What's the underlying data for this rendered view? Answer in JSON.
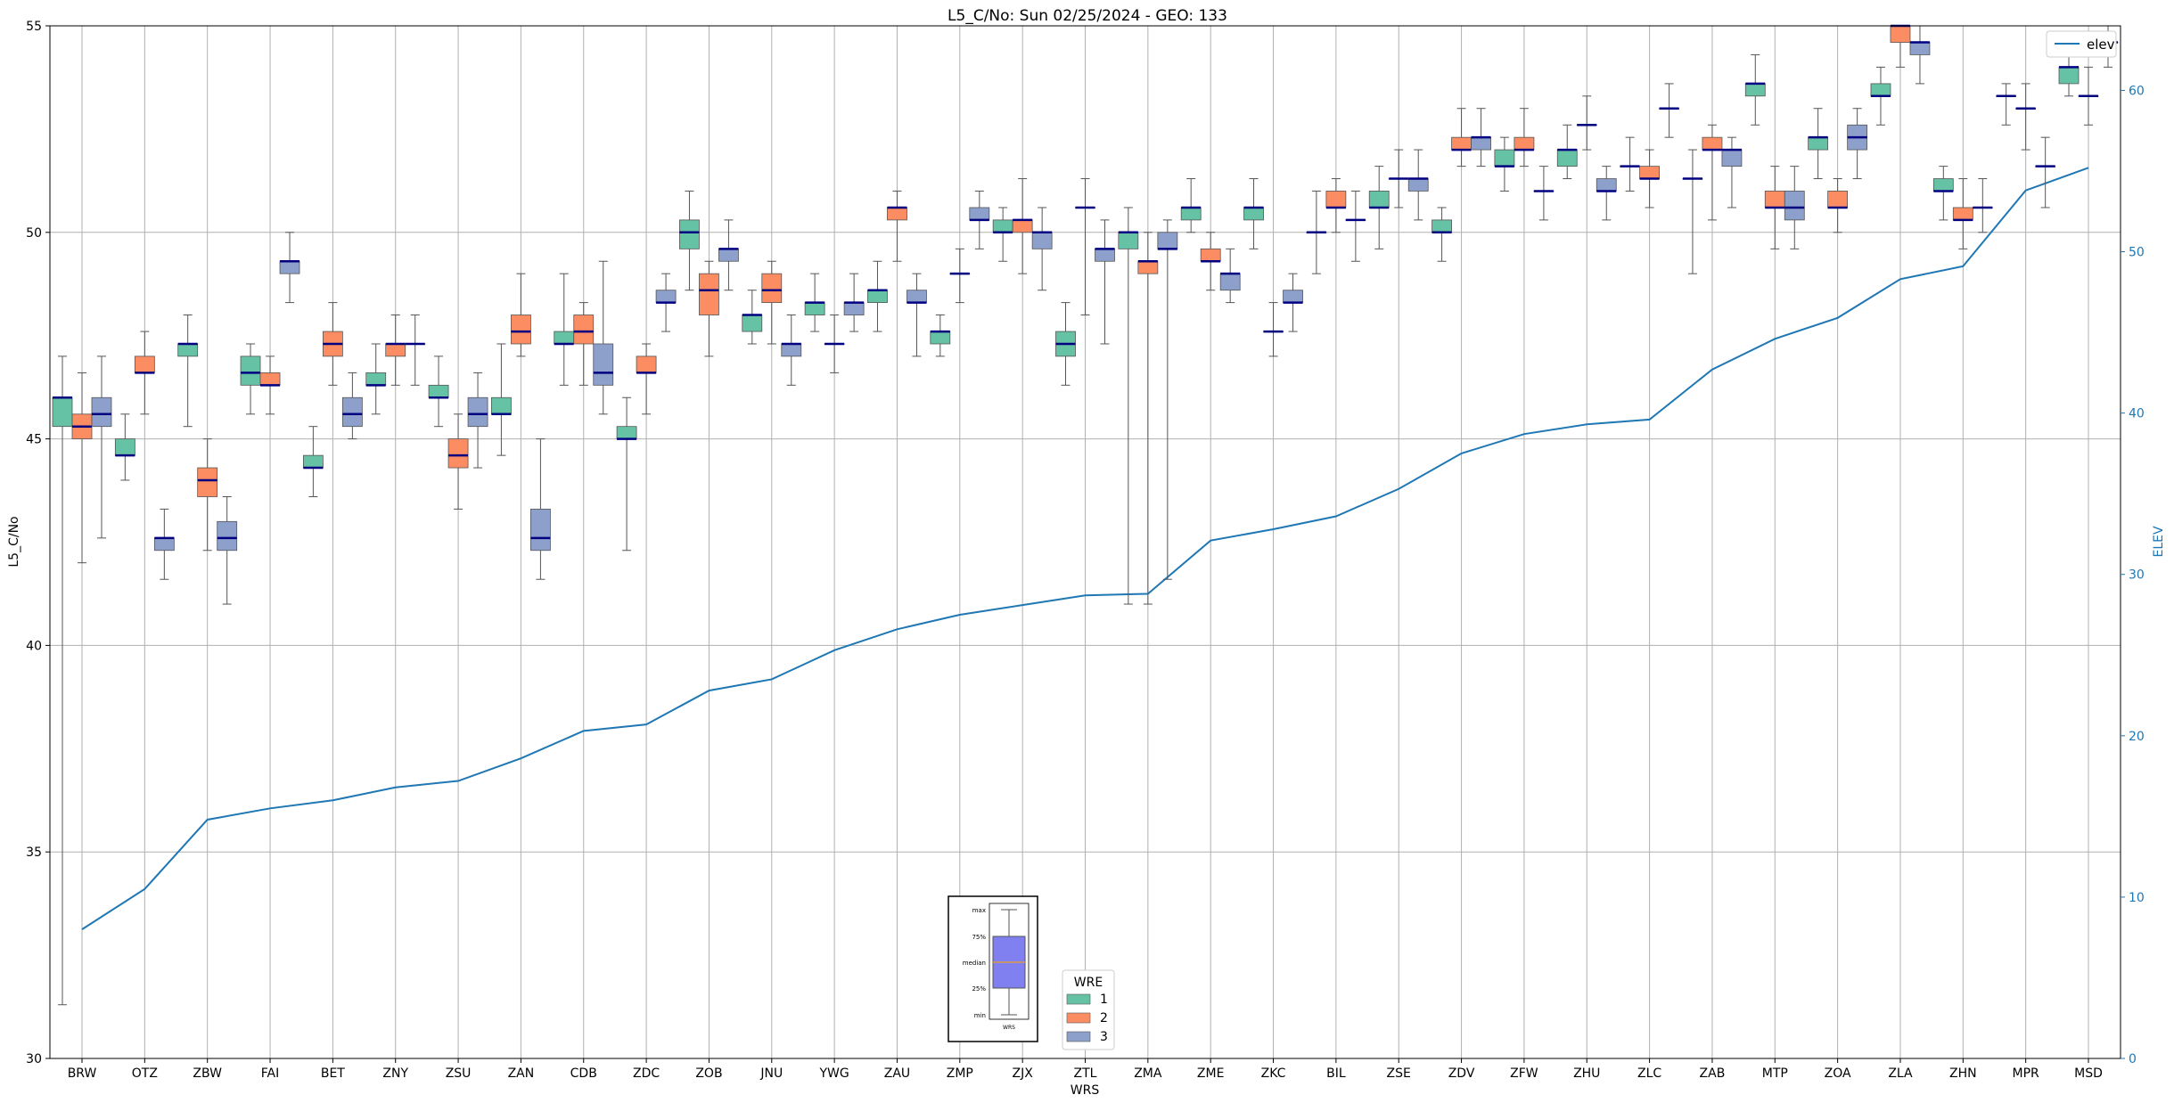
{
  "chart_data": {
    "type": "box",
    "title": "L5_C/No: Sun 02/25/2024 - GEO: 133",
    "xlabel": "WRS",
    "ylabel": "L5_C/No",
    "ylabel_right": "ELEV",
    "ylim": [
      30,
      55
    ],
    "ylim_right": [
      0,
      64
    ],
    "yticks": [
      30,
      35,
      40,
      45,
      50,
      55
    ],
    "yticks_right": [
      0,
      10,
      20,
      30,
      40,
      50,
      60
    ],
    "grid": true,
    "categories": [
      "BRW",
      "OTZ",
      "ZBW",
      "FAI",
      "BET",
      "ZNY",
      "ZSU",
      "ZAN",
      "CDB",
      "ZDC",
      "ZOB",
      "JNU",
      "YWG",
      "ZAU",
      "ZMP",
      "ZJX",
      "ZTL",
      "ZMA",
      "ZME",
      "ZKC",
      "BIL",
      "ZSE",
      "ZDV",
      "ZFW",
      "ZHU",
      "ZLC",
      "ZAB",
      "MTP",
      "ZOA",
      "ZLA",
      "ZHN",
      "MPR",
      "MSD"
    ],
    "wre_legend_title": "WRE",
    "series": [
      {
        "name": "1",
        "color": "#66c2a5",
        "boxes": [
          {
            "min": 31.3,
            "q1": 45.3,
            "median": 46.0,
            "q3": 46.0,
            "max": 47.0
          },
          {
            "min": 44.0,
            "q1": 44.6,
            "median": 44.6,
            "q3": 45.0,
            "max": 45.6
          },
          {
            "min": 45.3,
            "q1": 47.0,
            "median": 47.3,
            "q3": 47.3,
            "max": 48.0
          },
          {
            "min": 45.6,
            "q1": 46.3,
            "median": 46.6,
            "q3": 47.0,
            "max": 47.3
          },
          {
            "min": 43.6,
            "q1": 44.3,
            "median": 44.3,
            "q3": 44.6,
            "max": 45.3
          },
          {
            "min": 45.6,
            "q1": 46.3,
            "median": 46.3,
            "q3": 46.6,
            "max": 47.3
          },
          {
            "min": 45.3,
            "q1": 46.0,
            "median": 46.0,
            "q3": 46.3,
            "max": 47.0
          },
          {
            "min": 44.6,
            "q1": 45.6,
            "median": 45.6,
            "q3": 46.0,
            "max": 47.3
          },
          {
            "min": 46.3,
            "q1": 47.3,
            "median": 47.3,
            "q3": 47.6,
            "max": 49.0
          },
          {
            "min": 42.3,
            "q1": 45.0,
            "median": 45.0,
            "q3": 45.3,
            "max": 46.0
          },
          {
            "min": 48.6,
            "q1": 49.6,
            "median": 50.0,
            "q3": 50.3,
            "max": 51.0
          },
          {
            "min": 47.3,
            "q1": 47.6,
            "median": 48.0,
            "q3": 48.0,
            "max": 48.6
          },
          {
            "min": 47.6,
            "q1": 48.0,
            "median": 48.3,
            "q3": 48.3,
            "max": 49.0
          },
          {
            "min": 47.6,
            "q1": 48.3,
            "median": 48.6,
            "q3": 48.6,
            "max": 49.3
          },
          {
            "min": 47.0,
            "q1": 47.3,
            "median": 47.6,
            "q3": 47.6,
            "max": 48.0
          },
          {
            "min": 49.3,
            "q1": 50.0,
            "median": 50.0,
            "q3": 50.3,
            "max": 50.6
          },
          {
            "min": 46.3,
            "q1": 47.0,
            "median": 47.3,
            "q3": 47.6,
            "max": 48.3
          },
          {
            "min": 41.0,
            "q1": 49.6,
            "median": 50.0,
            "q3": 50.0,
            "max": 50.6
          },
          {
            "min": 50.0,
            "q1": 50.3,
            "median": 50.6,
            "q3": 50.6,
            "max": 51.3
          },
          {
            "min": 49.6,
            "q1": 50.3,
            "median": 50.6,
            "q3": 50.6,
            "max": 51.3
          },
          {
            "min": 49.0,
            "q1": 50.0,
            "median": 50.0,
            "q3": 50.0,
            "max": 51.0
          },
          {
            "min": 49.6,
            "q1": 50.6,
            "median": 50.6,
            "q3": 51.0,
            "max": 51.6
          },
          {
            "min": 49.3,
            "q1": 50.0,
            "median": 50.0,
            "q3": 50.3,
            "max": 50.6
          },
          {
            "min": 51.0,
            "q1": 51.6,
            "median": 51.6,
            "q3": 52.0,
            "max": 52.3
          },
          {
            "min": 51.3,
            "q1": 51.6,
            "median": 52.0,
            "q3": 52.0,
            "max": 52.6
          },
          {
            "min": 51.0,
            "q1": 51.6,
            "median": 51.6,
            "q3": 51.6,
            "max": 52.3
          },
          {
            "min": 49.0,
            "q1": 51.3,
            "median": 51.3,
            "q3": 51.3,
            "max": 52.0
          },
          {
            "min": 52.6,
            "q1": 53.3,
            "median": 53.6,
            "q3": 53.6,
            "max": 54.3
          },
          {
            "min": 51.3,
            "q1": 52.0,
            "median": 52.3,
            "q3": 52.3,
            "max": 53.0
          },
          {
            "min": 52.6,
            "q1": 53.3,
            "median": 53.3,
            "q3": 53.6,
            "max": 54.0
          },
          {
            "min": 50.3,
            "q1": 51.0,
            "median": 51.0,
            "q3": 51.3,
            "max": 51.6
          },
          {
            "min": 52.6,
            "q1": 53.3,
            "median": 53.3,
            "q3": 53.3,
            "max": 53.6
          },
          {
            "min": 53.3,
            "q1": 53.6,
            "median": 54.0,
            "q3": 54.0,
            "max": 54.6
          }
        ]
      },
      {
        "name": "2",
        "color": "#fc8d62",
        "boxes": [
          {
            "min": 42.0,
            "q1": 45.0,
            "median": 45.3,
            "q3": 45.6,
            "max": 46.6
          },
          {
            "min": 45.6,
            "q1": 46.6,
            "median": 46.6,
            "q3": 47.0,
            "max": 47.6
          },
          {
            "min": 42.3,
            "q1": 43.6,
            "median": 44.0,
            "q3": 44.3,
            "max": 45.0
          },
          {
            "min": 45.6,
            "q1": 46.3,
            "median": 46.3,
            "q3": 46.6,
            "max": 47.0
          },
          {
            "min": 46.3,
            "q1": 47.0,
            "median": 47.3,
            "q3": 47.6,
            "max": 48.3
          },
          {
            "min": 46.3,
            "q1": 47.0,
            "median": 47.3,
            "q3": 47.3,
            "max": 48.0
          },
          {
            "min": 43.3,
            "q1": 44.3,
            "median": 44.6,
            "q3": 45.0,
            "max": 45.6
          },
          {
            "min": 47.0,
            "q1": 47.3,
            "median": 47.6,
            "q3": 48.0,
            "max": 49.0
          },
          {
            "min": 46.3,
            "q1": 47.3,
            "median": 47.6,
            "q3": 48.0,
            "max": 48.3
          },
          {
            "min": 45.6,
            "q1": 46.6,
            "median": 46.6,
            "q3": 47.0,
            "max": 47.3
          },
          {
            "min": 47.0,
            "q1": 48.0,
            "median": 48.6,
            "q3": 49.0,
            "max": 49.3
          },
          {
            "min": 47.3,
            "q1": 48.3,
            "median": 48.6,
            "q3": 49.0,
            "max": 49.3
          },
          {
            "min": 46.6,
            "q1": 47.3,
            "median": 47.3,
            "q3": 47.3,
            "max": 48.0
          },
          {
            "min": 49.3,
            "q1": 50.3,
            "median": 50.6,
            "q3": 50.6,
            "max": 51.0
          },
          {
            "min": 48.3,
            "q1": 49.0,
            "median": 49.0,
            "q3": 49.0,
            "max": 49.6
          },
          {
            "min": 49.0,
            "q1": 50.0,
            "median": 50.3,
            "q3": 50.3,
            "max": 51.3
          },
          {
            "min": 48.0,
            "q1": 50.6,
            "median": 50.6,
            "q3": 50.6,
            "max": 51.3
          },
          {
            "min": 41.0,
            "q1": 49.0,
            "median": 49.3,
            "q3": 49.3,
            "max": 50.0
          },
          {
            "min": 48.6,
            "q1": 49.3,
            "median": 49.3,
            "q3": 49.6,
            "max": 50.0
          },
          {
            "min": 47.0,
            "q1": 47.6,
            "median": 47.6,
            "q3": 47.6,
            "max": 48.3
          },
          {
            "min": 50.0,
            "q1": 50.6,
            "median": 50.6,
            "q3": 51.0,
            "max": 51.3
          },
          {
            "min": 50.6,
            "q1": 51.3,
            "median": 51.3,
            "q3": 51.3,
            "max": 52.0
          },
          {
            "min": 51.6,
            "q1": 52.0,
            "median": 52.0,
            "q3": 52.3,
            "max": 53.0
          },
          {
            "min": 51.6,
            "q1": 52.0,
            "median": 52.0,
            "q3": 52.3,
            "max": 53.0
          },
          {
            "min": 52.0,
            "q1": 52.6,
            "median": 52.6,
            "q3": 52.6,
            "max": 53.3
          },
          {
            "min": 50.6,
            "q1": 51.3,
            "median": 51.3,
            "q3": 51.6,
            "max": 52.0
          },
          {
            "min": 50.3,
            "q1": 52.0,
            "median": 52.0,
            "q3": 52.3,
            "max": 52.6
          },
          {
            "min": 49.6,
            "q1": 50.6,
            "median": 50.6,
            "q3": 51.0,
            "max": 51.6
          },
          {
            "min": 50.0,
            "q1": 50.6,
            "median": 50.6,
            "q3": 51.0,
            "max": 51.3
          },
          {
            "min": 54.0,
            "q1": 54.6,
            "median": 55.0,
            "q3": 55.0,
            "max": 55.0
          },
          {
            "min": 49.6,
            "q1": 50.3,
            "median": 50.3,
            "q3": 50.6,
            "max": 51.3
          },
          {
            "min": 52.0,
            "q1": 53.0,
            "median": 53.0,
            "q3": 53.0,
            "max": 53.6
          },
          {
            "min": 52.6,
            "q1": 53.3,
            "median": 53.3,
            "q3": 53.3,
            "max": 54.0
          }
        ]
      },
      {
        "name": "3",
        "color": "#8da0cb",
        "boxes": [
          {
            "min": 42.6,
            "q1": 45.3,
            "median": 45.6,
            "q3": 46.0,
            "max": 47.0
          },
          {
            "min": 41.6,
            "q1": 42.3,
            "median": 42.6,
            "q3": 42.6,
            "max": 43.3
          },
          {
            "min": 41.0,
            "q1": 42.3,
            "median": 42.6,
            "q3": 43.0,
            "max": 43.6
          },
          {
            "min": 48.3,
            "q1": 49.0,
            "median": 49.3,
            "q3": 49.3,
            "max": 50.0
          },
          {
            "min": 45.0,
            "q1": 45.3,
            "median": 45.6,
            "q3": 46.0,
            "max": 46.6
          },
          {
            "min": 46.3,
            "q1": 47.3,
            "median": 47.3,
            "q3": 47.3,
            "max": 48.0
          },
          {
            "min": 44.3,
            "q1": 45.3,
            "median": 45.6,
            "q3": 46.0,
            "max": 46.6
          },
          {
            "min": 41.6,
            "q1": 42.3,
            "median": 42.6,
            "q3": 43.3,
            "max": 45.0
          },
          {
            "min": 45.6,
            "q1": 46.3,
            "median": 46.6,
            "q3": 47.3,
            "max": 49.3
          },
          {
            "min": 47.6,
            "q1": 48.3,
            "median": 48.3,
            "q3": 48.6,
            "max": 49.0
          },
          {
            "min": 48.6,
            "q1": 49.3,
            "median": 49.6,
            "q3": 49.6,
            "max": 50.3
          },
          {
            "min": 46.3,
            "q1": 47.0,
            "median": 47.3,
            "q3": 47.3,
            "max": 48.0
          },
          {
            "min": 47.6,
            "q1": 48.0,
            "median": 48.3,
            "q3": 48.3,
            "max": 49.0
          },
          {
            "min": 47.0,
            "q1": 48.3,
            "median": 48.3,
            "q3": 48.6,
            "max": 49.0
          },
          {
            "min": 49.6,
            "q1": 50.3,
            "median": 50.3,
            "q3": 50.6,
            "max": 51.0
          },
          {
            "min": 48.6,
            "q1": 49.6,
            "median": 50.0,
            "q3": 50.0,
            "max": 50.6
          },
          {
            "min": 47.3,
            "q1": 49.3,
            "median": 49.6,
            "q3": 49.6,
            "max": 50.3
          },
          {
            "min": 41.6,
            "q1": 49.6,
            "median": 49.6,
            "q3": 50.0,
            "max": 50.3
          },
          {
            "min": 48.3,
            "q1": 48.6,
            "median": 49.0,
            "q3": 49.0,
            "max": 49.6
          },
          {
            "min": 47.6,
            "q1": 48.3,
            "median": 48.3,
            "q3": 48.6,
            "max": 49.0
          },
          {
            "min": 49.3,
            "q1": 50.3,
            "median": 50.3,
            "q3": 50.3,
            "max": 51.0
          },
          {
            "min": 50.3,
            "q1": 51.0,
            "median": 51.3,
            "q3": 51.3,
            "max": 52.0
          },
          {
            "min": 51.6,
            "q1": 52.0,
            "median": 52.3,
            "q3": 52.3,
            "max": 53.0
          },
          {
            "min": 50.3,
            "q1": 51.0,
            "median": 51.0,
            "q3": 51.0,
            "max": 51.6
          },
          {
            "min": 50.3,
            "q1": 51.0,
            "median": 51.0,
            "q3": 51.3,
            "max": 51.6
          },
          {
            "min": 52.3,
            "q1": 53.0,
            "median": 53.0,
            "q3": 53.0,
            "max": 53.6
          },
          {
            "min": 50.6,
            "q1": 51.6,
            "median": 52.0,
            "q3": 52.0,
            "max": 52.3
          },
          {
            "min": 49.6,
            "q1": 50.3,
            "median": 50.6,
            "q3": 51.0,
            "max": 51.6
          },
          {
            "min": 51.3,
            "q1": 52.0,
            "median": 52.3,
            "q3": 52.6,
            "max": 53.0
          },
          {
            "min": 53.6,
            "q1": 54.3,
            "median": 54.6,
            "q3": 54.6,
            "max": 55.0
          },
          {
            "min": 50.0,
            "q1": 50.6,
            "median": 50.6,
            "q3": 50.6,
            "max": 51.3
          },
          {
            "min": 50.6,
            "q1": 51.6,
            "median": 51.6,
            "q3": 51.6,
            "max": 52.3
          },
          {
            "min": 54.0,
            "q1": 54.6,
            "median": 54.6,
            "q3": 54.6,
            "max": 55.0
          }
        ]
      }
    ],
    "elev": {
      "name": "elev",
      "color": "#1f77b4",
      "values": [
        8.0,
        10.5,
        14.8,
        15.5,
        16.0,
        16.8,
        17.2,
        18.6,
        20.3,
        20.7,
        22.8,
        23.5,
        25.3,
        26.6,
        27.5,
        28.1,
        28.7,
        28.8,
        32.1,
        32.8,
        33.6,
        35.3,
        37.5,
        38.7,
        39.3,
        39.6,
        42.7,
        44.6,
        45.9,
        48.3,
        49.1,
        53.8,
        55.2
      ]
    },
    "inset_legend": {
      "labels": [
        "max",
        "75%",
        "median",
        "25%",
        "min"
      ],
      "box_label": "WRS",
      "box_color": "#8080f0"
    }
  }
}
